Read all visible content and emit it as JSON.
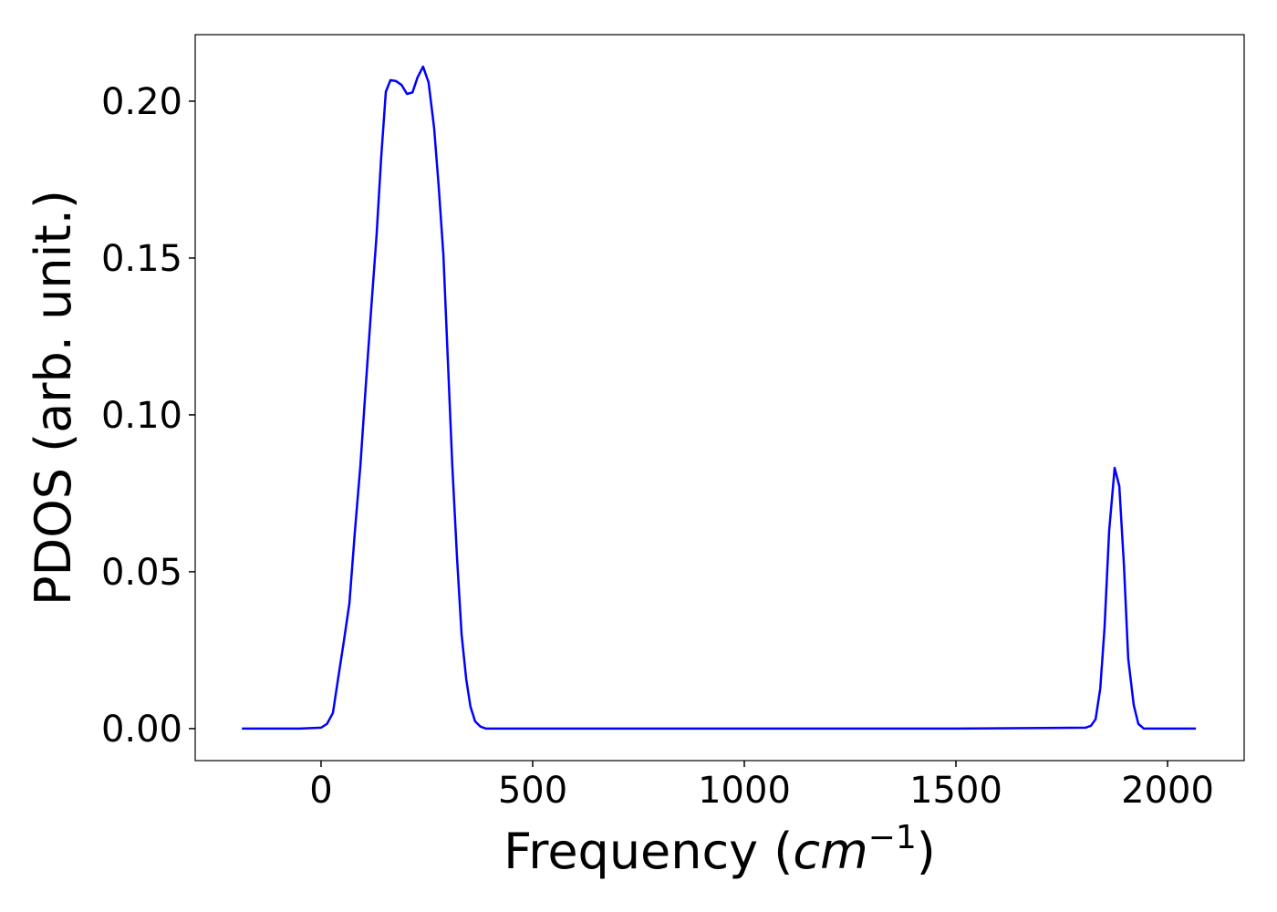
{
  "chart_data": {
    "type": "line",
    "xlabel": [
      "Frequency (",
      "cm",
      "−1",
      ")"
    ],
    "ylabel": "PDOS (arb. unit.)",
    "xlim": [
      -297.4,
      2181
    ],
    "ylim": [
      -0.0102,
      0.2212
    ],
    "xticks": [
      0,
      500,
      1000,
      1500,
      2000
    ],
    "yticks": [
      {
        "value": 0,
        "label": "0.00"
      },
      {
        "value": 0.05,
        "label": "0.05"
      },
      {
        "value": 0.1,
        "label": "0.10"
      },
      {
        "value": 0.15,
        "label": "0.15"
      },
      {
        "value": 0.2,
        "label": "0.20"
      }
    ],
    "grid": false,
    "x": [
      -187,
      -150,
      -100,
      -50,
      0,
      14,
      28,
      41,
      54,
      67,
      80,
      93,
      106,
      118,
      131,
      142,
      153,
      164,
      177,
      190,
      203,
      216,
      228,
      241,
      254,
      267,
      278,
      289,
      300,
      310,
      321,
      332,
      343,
      353,
      364,
      377,
      390,
      500,
      1000,
      1500,
      1806,
      1819,
      1830,
      1841,
      1851,
      1862,
      1875,
      1886,
      1897,
      1907,
      1920,
      1931,
      1944,
      2000,
      2067
    ],
    "series": [
      {
        "name": "PDOS",
        "color": "#0000ff",
        "values": [
          0,
          0,
          0,
          0,
          0.0003,
          0.0015,
          0.005,
          0.0166,
          0.028,
          0.04,
          0.063,
          0.084,
          0.11,
          0.133,
          0.157,
          0.182,
          0.203,
          0.2067,
          0.2064,
          0.2052,
          0.2023,
          0.2028,
          0.2076,
          0.211,
          0.206,
          0.1916,
          0.1727,
          0.151,
          0.116,
          0.084,
          0.055,
          0.03,
          0.0157,
          0.007,
          0.0023,
          0.0006,
          0,
          0,
          0,
          0,
          0.0003,
          0.0009,
          0.003,
          0.0128,
          0.032,
          0.063,
          0.0831,
          0.0773,
          0.052,
          0.0224,
          0.0076,
          0.0015,
          0,
          0,
          0
        ]
      }
    ]
  }
}
